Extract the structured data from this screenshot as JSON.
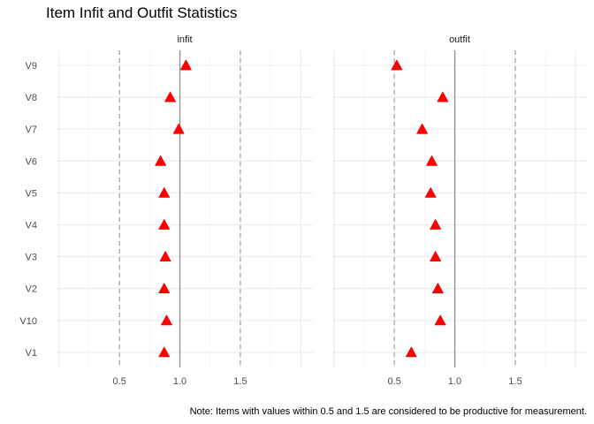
{
  "chart_data": {
    "type": "scatter",
    "title": "Item Infit and Outfit Statistics",
    "caption": "Note: Items with values within 0.5 and 1.5 are considered to be productive for measurement.",
    "xlabel": "",
    "ylabel": "",
    "xlim": [
      -0.02,
      2.1
    ],
    "x_ticks": [
      "0.5",
      "1.0",
      "1.5"
    ],
    "solid_reference_line": 1.0,
    "dashed_reference_lines": [
      0.5,
      1.5
    ],
    "grid": true,
    "marker": "triangle",
    "marker_color": "#ff0000",
    "categories": [
      "V9",
      "V8",
      "V7",
      "V6",
      "V5",
      "V4",
      "V3",
      "V2",
      "V10",
      "V1"
    ],
    "panels": [
      {
        "name": "infit",
        "values": [
          1.05,
          0.92,
          0.99,
          0.84,
          0.87,
          0.87,
          0.88,
          0.87,
          0.89,
          0.87
        ]
      },
      {
        "name": "outfit",
        "values": [
          0.52,
          0.9,
          0.73,
          0.81,
          0.8,
          0.84,
          0.84,
          0.86,
          0.88,
          0.64
        ]
      }
    ]
  }
}
